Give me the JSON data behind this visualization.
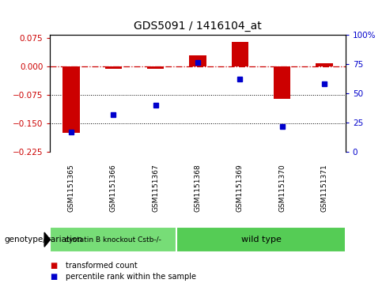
{
  "title": "GDS5091 / 1416104_at",
  "samples": [
    "GSM1151365",
    "GSM1151366",
    "GSM1151367",
    "GSM1151368",
    "GSM1151369",
    "GSM1151370",
    "GSM1151371"
  ],
  "red_bars": [
    -0.175,
    -0.005,
    -0.005,
    0.03,
    0.065,
    -0.085,
    0.01
  ],
  "blue_dots_pct": [
    17,
    32,
    40,
    76,
    62,
    22,
    58
  ],
  "ylim_left": [
    -0.225,
    0.085
  ],
  "ylim_right": [
    0,
    100
  ],
  "yticks_left": [
    0.075,
    0,
    -0.075,
    -0.15,
    -0.225
  ],
  "yticks_right": [
    100,
    75,
    50,
    25,
    0
  ],
  "legend_labels": [
    "transformed count",
    "percentile rank within the sample"
  ],
  "legend_colors": [
    "#cc0000",
    "#0000cc"
  ],
  "genotype_label": "genotype/variation",
  "bar_color": "#cc0000",
  "dot_color": "#0000cc",
  "bg_color": "#ffffff",
  "plot_bg": "#ffffff",
  "group1_count": 3,
  "group_label1": "cystatin B knockout Cstb-/-",
  "group_label2": "wild type",
  "group_color1": "#77dd77",
  "group_color2": "#55cc55",
  "sample_bg": "#c8c8c8",
  "title_fontsize": 10
}
